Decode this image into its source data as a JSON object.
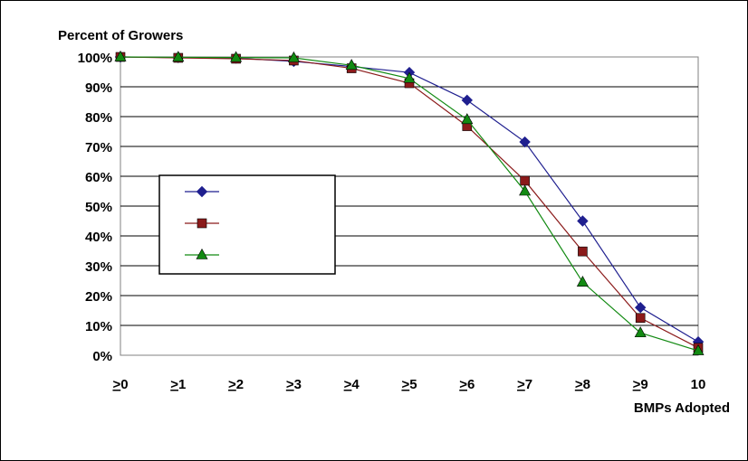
{
  "chart_data": {
    "type": "line",
    "title": "",
    "ylabel": "Percent of Growers",
    "xlabel": "BMPs Adopted",
    "categories": [
      ">0",
      ">1",
      ">2",
      ">3",
      ">4",
      ">5",
      ">6",
      ">7",
      ">8",
      ">9",
      "10"
    ],
    "category_display": [
      {
        "sym": ">",
        "num": "0",
        "underline": true
      },
      {
        "sym": ">",
        "num": "1",
        "underline": true
      },
      {
        "sym": ">",
        "num": "2",
        "underline": true
      },
      {
        "sym": ">",
        "num": "3",
        "underline": true
      },
      {
        "sym": ">",
        "num": "4",
        "underline": true
      },
      {
        "sym": ">",
        "num": "5",
        "underline": true
      },
      {
        "sym": ">",
        "num": "6",
        "underline": true
      },
      {
        "sym": ">",
        "num": "7",
        "underline": true
      },
      {
        "sym": ">",
        "num": "8",
        "underline": true
      },
      {
        "sym": ">",
        "num": "9",
        "underline": true
      },
      {
        "sym": "",
        "num": "10",
        "underline": false
      }
    ],
    "ylim": [
      0,
      100
    ],
    "yticks": [
      "0%",
      "10%",
      "20%",
      "30%",
      "40%",
      "50%",
      "60%",
      "70%",
      "80%",
      "90%",
      "100%"
    ],
    "grid": true,
    "legend_position": "center-left",
    "series": [
      {
        "marker": "diamond",
        "color": "#1f1f8f",
        "values": [
          100,
          99.8,
          99.6,
          98.5,
          96.8,
          94.8,
          85.5,
          71.5,
          45,
          16,
          4.5
        ]
      },
      {
        "marker": "square",
        "color": "#8b1a1a",
        "values": [
          100,
          99.7,
          99.4,
          98.8,
          96.2,
          91.2,
          76.8,
          58.5,
          34.8,
          12.5,
          2.5
        ]
      },
      {
        "marker": "triangle",
        "color": "#128a12",
        "values": [
          100,
          99.9,
          99.8,
          99.7,
          97.2,
          92.8,
          79,
          55,
          24.5,
          7.5,
          1.5
        ]
      }
    ]
  }
}
